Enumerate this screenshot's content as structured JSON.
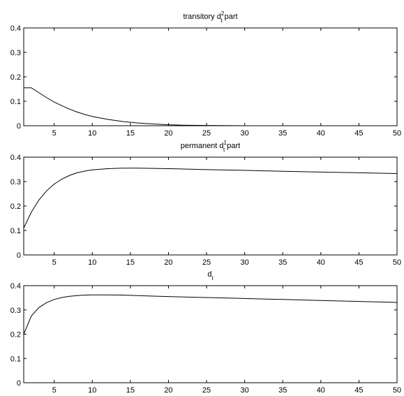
{
  "figure": {
    "background": "#ffffff",
    "line_color": "#000000"
  },
  "chart_data": [
    {
      "type": "line",
      "title": {
        "pre": "transitory d",
        "sub": "t",
        "sup": "2",
        "post": " part"
      },
      "xlabel": "",
      "ylabel": "",
      "xlim": [
        1,
        50
      ],
      "ylim": [
        0,
        0.4
      ],
      "xticks": [
        5,
        10,
        15,
        20,
        25,
        30,
        35,
        40,
        45,
        50
      ],
      "yticks": [
        0,
        0.1,
        0.2,
        0.3,
        0.4
      ],
      "grid": false,
      "series": [
        {
          "x": [
            1,
            2,
            3,
            4,
            5,
            6,
            7,
            8,
            9,
            10,
            12,
            14,
            16,
            18,
            20,
            22,
            25,
            30,
            35,
            40,
            45,
            50
          ],
          "values": [
            0.155,
            0.155,
            0.135,
            0.115,
            0.097,
            0.082,
            0.068,
            0.056,
            0.046,
            0.038,
            0.026,
            0.017,
            0.011,
            0.007,
            0.004,
            0.002,
            0.001,
            0.0,
            0.0,
            0.0,
            0.0,
            0.0
          ]
        }
      ]
    },
    {
      "type": "line",
      "title": {
        "pre": "permanent d",
        "sub": "t",
        "sup": "1",
        "post": " part"
      },
      "xlabel": "",
      "ylabel": "",
      "xlim": [
        1,
        50
      ],
      "ylim": [
        0,
        0.4
      ],
      "xticks": [
        5,
        10,
        15,
        20,
        25,
        30,
        35,
        40,
        45,
        50
      ],
      "yticks": [
        0,
        0.1,
        0.2,
        0.3,
        0.4
      ],
      "grid": false,
      "series": [
        {
          "x": [
            1,
            2,
            3,
            4,
            5,
            6,
            7,
            8,
            9,
            10,
            12,
            14,
            16,
            18,
            20,
            25,
            30,
            35,
            40,
            45,
            50
          ],
          "values": [
            0.11,
            0.175,
            0.225,
            0.262,
            0.29,
            0.31,
            0.325,
            0.336,
            0.343,
            0.348,
            0.353,
            0.355,
            0.355,
            0.354,
            0.353,
            0.349,
            0.346,
            0.342,
            0.339,
            0.336,
            0.333
          ]
        }
      ]
    },
    {
      "type": "line",
      "title": {
        "pre": "d",
        "sub": "t",
        "sup": "",
        "post": ""
      },
      "xlabel": "",
      "ylabel": "",
      "xlim": [
        1,
        50
      ],
      "ylim": [
        0,
        0.4
      ],
      "xticks": [
        5,
        10,
        15,
        20,
        25,
        30,
        35,
        40,
        45,
        50
      ],
      "yticks": [
        0,
        0.1,
        0.2,
        0.3,
        0.4
      ],
      "grid": false,
      "series": [
        {
          "x": [
            1,
            2,
            3,
            4,
            5,
            6,
            7,
            8,
            9,
            10,
            11,
            12,
            14,
            16,
            18,
            20,
            25,
            30,
            35,
            40,
            45,
            50
          ],
          "values": [
            0.2,
            0.275,
            0.31,
            0.33,
            0.343,
            0.351,
            0.356,
            0.359,
            0.361,
            0.362,
            0.362,
            0.362,
            0.361,
            0.359,
            0.357,
            0.355,
            0.351,
            0.347,
            0.343,
            0.339,
            0.335,
            0.331
          ]
        }
      ]
    }
  ]
}
